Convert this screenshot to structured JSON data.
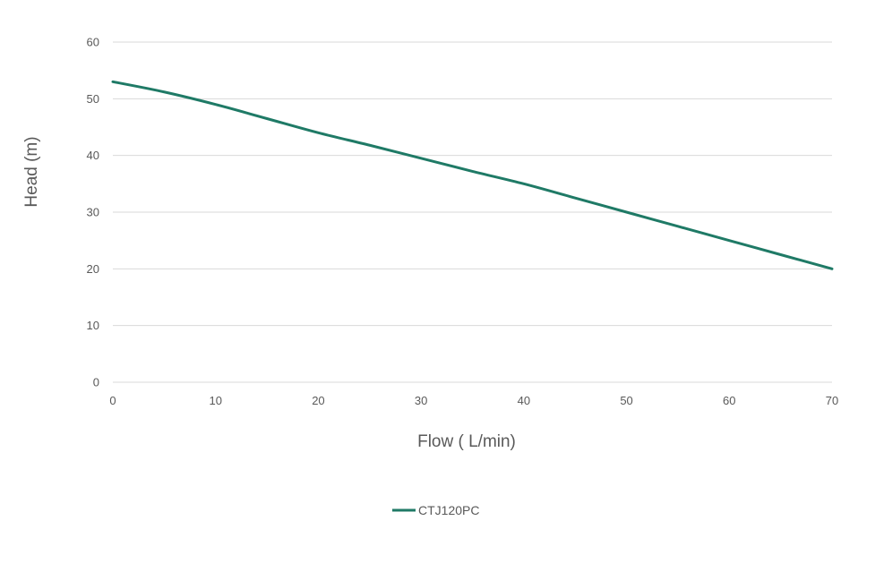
{
  "chart_data": {
    "type": "line",
    "title": "",
    "xlabel": "Flow ( L/min)",
    "ylabel": "Head (m)",
    "xlim": [
      0,
      70
    ],
    "ylim": [
      0,
      60
    ],
    "x_ticks": [
      "0",
      "10",
      "20",
      "30",
      "40",
      "50",
      "60",
      "70"
    ],
    "y_ticks": [
      "0",
      "10",
      "20",
      "30",
      "40",
      "50",
      "60"
    ],
    "grid": "horizontal",
    "legend_position": "bottom",
    "series": [
      {
        "name": "CTJ120PC",
        "color": "#1f7a66",
        "x": [
          0,
          5,
          10,
          15,
          20,
          25,
          30,
          35,
          40,
          45,
          50,
          55,
          60,
          65,
          70
        ],
        "y": [
          53,
          51.2,
          49,
          46.5,
          44,
          41.8,
          39.5,
          37.2,
          35,
          32.5,
          30,
          27.5,
          25,
          22.5,
          20
        ]
      }
    ]
  }
}
